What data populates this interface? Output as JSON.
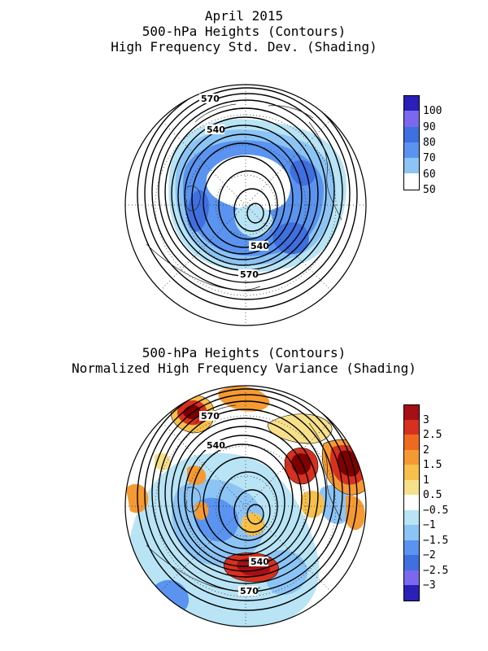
{
  "header": {
    "line1": "April 2015",
    "line2": "500-hPa Heights (Contours)",
    "line3": "High Frequency Std. Dev. (Shading)"
  },
  "panel_bottom": {
    "line1": "500-hPa Heights (Contours)",
    "line2": "Normalized High Frequency Variance (Shading)"
  },
  "map_top": {
    "contour_labels": [
      "570",
      "540",
      "540",
      "570"
    ],
    "colorbar": {
      "ticks": [
        "100",
        "90",
        "80",
        "70",
        "60",
        "50"
      ],
      "colors": [
        "#2b1fb8",
        "#7b68ee",
        "#3f6fe0",
        "#5a94f0",
        "#8cc4f5",
        "#ffffff"
      ]
    }
  },
  "map_bottom": {
    "contour_labels": [
      "570",
      "540",
      "540",
      "570"
    ],
    "colorbar": {
      "ticks": [
        "3",
        "2.5",
        "2",
        "1.5",
        "1",
        "0.5",
        "−0.5",
        "−1",
        "−1.5",
        "−2",
        "−2.5",
        "−3"
      ],
      "colors": [
        "#a50f15",
        "#d7301f",
        "#ef6a1f",
        "#f59a32",
        "#f7c04a",
        "#f7e08a",
        "#ffffff",
        "#b8e4f5",
        "#8cc4f5",
        "#5a94f0",
        "#3f6fe0",
        "#7b68ee",
        "#2b1fb8"
      ]
    }
  }
}
